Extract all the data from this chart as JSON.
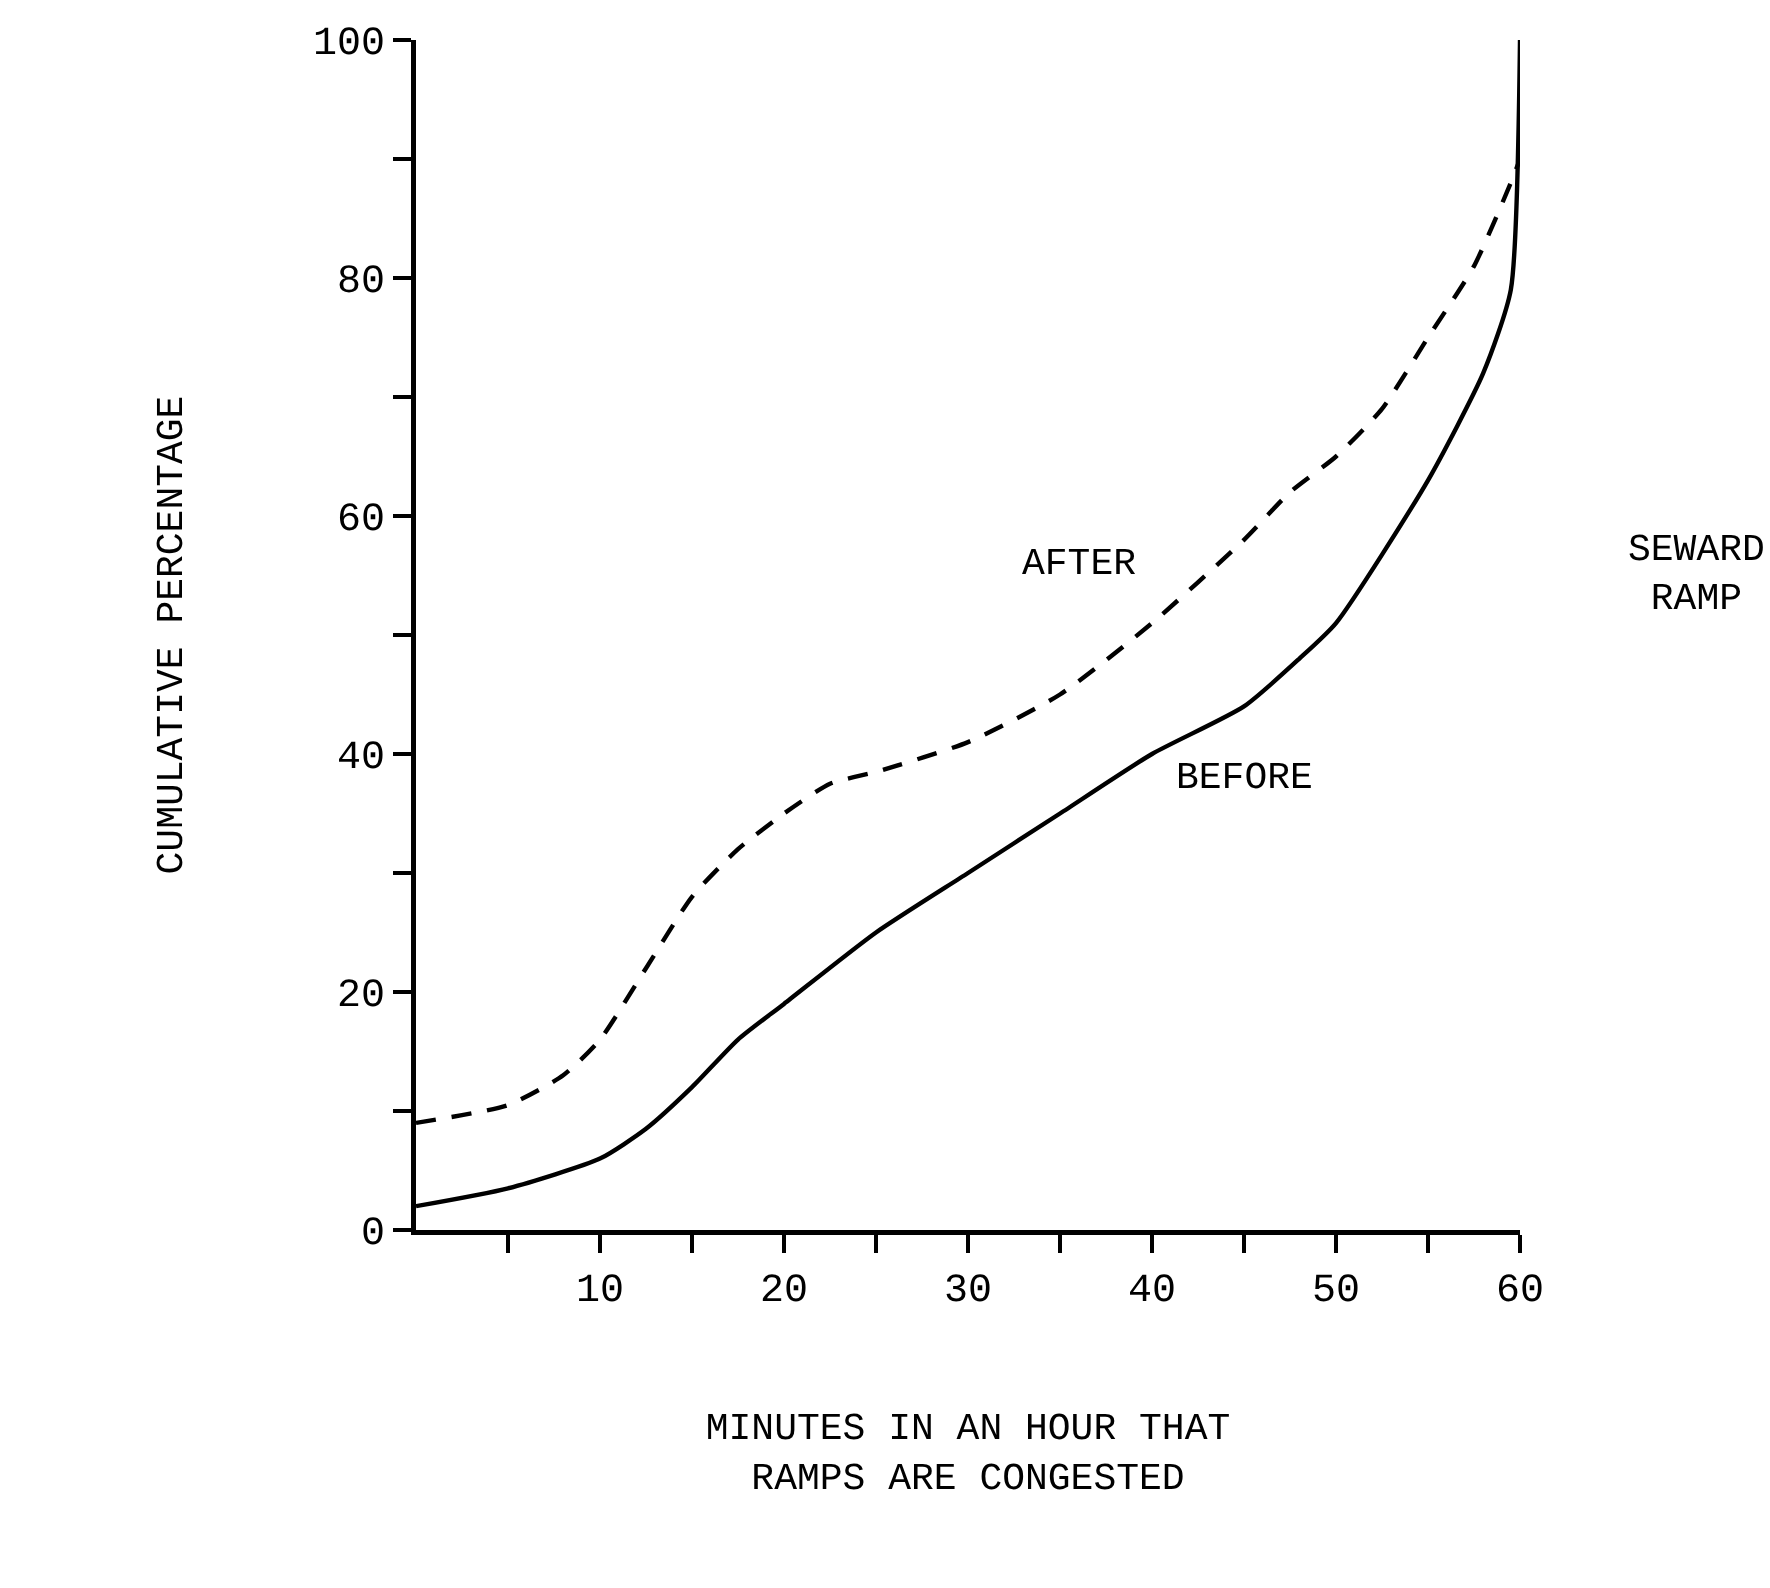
{
  "chart_data": {
    "type": "line",
    "xlabel": "MINUTES IN AN HOUR THAT RAMPS ARE CONGESTED",
    "ylabel": "CUMULATIVE PERCENTAGE",
    "xlim": [
      0,
      60
    ],
    "ylim": [
      0,
      100
    ],
    "xticks": [
      {
        "value": 5,
        "label": null
      },
      10,
      {
        "value": 15,
        "label": null
      },
      20,
      {
        "value": 25,
        "label": null
      },
      30,
      {
        "value": 35,
        "label": null
      },
      40,
      {
        "value": 45,
        "label": null
      },
      50,
      {
        "value": 55,
        "label": null
      },
      60
    ],
    "yticks": [
      0,
      {
        "value": 10,
        "label": null
      },
      20,
      {
        "value": 30,
        "label": null
      },
      40,
      {
        "value": 50,
        "label": null
      },
      60,
      {
        "value": 70,
        "label": null
      },
      80,
      {
        "value": 90,
        "label": null
      },
      100
    ],
    "marker": "none",
    "series": [
      {
        "color": "#000000",
        "line_style": "solid",
        "x": [
          0,
          5,
          10,
          12.5,
          15,
          17.5,
          20,
          25,
          30,
          35,
          40,
          45,
          48,
          50,
          55,
          58,
          59.5,
          60
        ],
        "values": [
          2,
          3.5,
          6,
          8.5,
          12,
          16,
          19,
          25,
          30,
          35,
          40,
          44,
          48,
          51,
          63,
          72,
          79,
          100
        ]
      },
      {
        "color": "#000000",
        "line_style": "dashed",
        "x": [
          0,
          5,
          8,
          10,
          12.5,
          15,
          17.5,
          20,
          22.5,
          25,
          30,
          35,
          40,
          45,
          47.5,
          50,
          52.5,
          55,
          57.5,
          59.5,
          60
        ],
        "values": [
          9,
          10.5,
          13,
          16,
          22,
          28,
          32,
          35,
          37.5,
          38.5,
          41,
          45,
          51,
          58,
          62,
          65,
          69,
          75,
          81,
          88,
          90
        ]
      }
    ],
    "annotations": [
      "AFTER",
      "BEFORE",
      "SEWARD RAMP"
    ]
  }
}
